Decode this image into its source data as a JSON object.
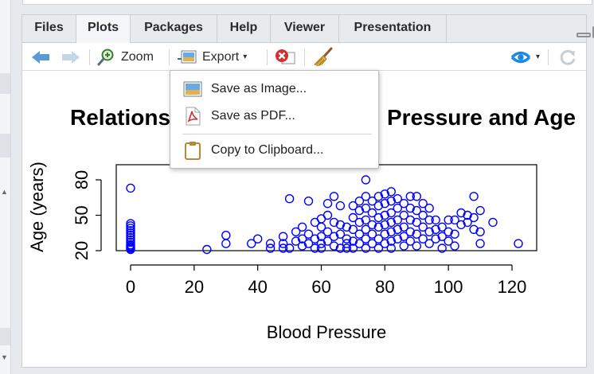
{
  "tabs": [
    {
      "label": "Files"
    },
    {
      "label": "Plots",
      "active": true
    },
    {
      "label": "Packages"
    },
    {
      "label": "Help"
    },
    {
      "label": "Viewer"
    },
    {
      "label": "Presentation"
    }
  ],
  "toolbar": {
    "zoom_label": "Zoom",
    "export_label": "Export",
    "export_caret": "▾",
    "publish_caret": "▾"
  },
  "export_menu": {
    "items": [
      {
        "label": "Save as Image...",
        "icon": "image-icon"
      },
      {
        "label": "Save as PDF...",
        "icon": "pdf-icon"
      },
      {
        "label": "Copy to Clipboard...",
        "icon": "clipboard-icon"
      }
    ]
  },
  "colors": {
    "point_color": "#0000ff",
    "arrow_blue": "#5b9bd5",
    "publish_blue": "#1e88e5"
  },
  "chart_data": {
    "type": "scatter",
    "title_left": "Relations",
    "title_right": "Pressure and Age",
    "xlabel": "Blood Pressure",
    "ylabel": "Age (years)",
    "xlim": [
      0,
      125
    ],
    "ylim": [
      20,
      82
    ],
    "xticks": [
      0,
      20,
      40,
      60,
      80,
      100,
      120
    ],
    "yticks": [
      20,
      50,
      80
    ],
    "grid": false,
    "marker": "open-circle",
    "points": [
      [
        0,
        73
      ],
      [
        0,
        43
      ],
      [
        0,
        41
      ],
      [
        0,
        39
      ],
      [
        0,
        37
      ],
      [
        0,
        35
      ],
      [
        0,
        33
      ],
      [
        0,
        31
      ],
      [
        0,
        29
      ],
      [
        0,
        27
      ],
      [
        0,
        25
      ],
      [
        0,
        24
      ],
      [
        0,
        23
      ],
      [
        0,
        22
      ],
      [
        0,
        21
      ],
      [
        24,
        21
      ],
      [
        30,
        26
      ],
      [
        30,
        33
      ],
      [
        38,
        26
      ],
      [
        40,
        30
      ],
      [
        44,
        26
      ],
      [
        44,
        22
      ],
      [
        48,
        22
      ],
      [
        48,
        26
      ],
      [
        48,
        32
      ],
      [
        50,
        64
      ],
      [
        50,
        22
      ],
      [
        52,
        28
      ],
      [
        52,
        36
      ],
      [
        54,
        40
      ],
      [
        54,
        30
      ],
      [
        54,
        24
      ],
      [
        56,
        62
      ],
      [
        56,
        26
      ],
      [
        56,
        34
      ],
      [
        58,
        44
      ],
      [
        58,
        22
      ],
      [
        58,
        30
      ],
      [
        60,
        40
      ],
      [
        60,
        32
      ],
      [
        60,
        26
      ],
      [
        60,
        22
      ],
      [
        60,
        47
      ],
      [
        62,
        60
      ],
      [
        62,
        50
      ],
      [
        62,
        36
      ],
      [
        62,
        28
      ],
      [
        64,
        66
      ],
      [
        64,
        44
      ],
      [
        64,
        24
      ],
      [
        64,
        32
      ],
      [
        66,
        58
      ],
      [
        66,
        42
      ],
      [
        66,
        34
      ],
      [
        66,
        22
      ],
      [
        68,
        40
      ],
      [
        68,
        30
      ],
      [
        68,
        26
      ],
      [
        68,
        22
      ],
      [
        70,
        58
      ],
      [
        70,
        48
      ],
      [
        70,
        38
      ],
      [
        70,
        28
      ],
      [
        70,
        22
      ],
      [
        72,
        62
      ],
      [
        72,
        54
      ],
      [
        72,
        44
      ],
      [
        72,
        34
      ],
      [
        72,
        26
      ],
      [
        74,
        66
      ],
      [
        74,
        56
      ],
      [
        74,
        46
      ],
      [
        74,
        38
      ],
      [
        74,
        30
      ],
      [
        74,
        22
      ],
      [
        74,
        80
      ],
      [
        76,
        62
      ],
      [
        76,
        52
      ],
      [
        76,
        42
      ],
      [
        76,
        34
      ],
      [
        76,
        26
      ],
      [
        78,
        66
      ],
      [
        78,
        58
      ],
      [
        78,
        48
      ],
      [
        78,
        40
      ],
      [
        78,
        30
      ],
      [
        78,
        22
      ],
      [
        80,
        68
      ],
      [
        80,
        60
      ],
      [
        80,
        50
      ],
      [
        80,
        42
      ],
      [
        80,
        34
      ],
      [
        80,
        26
      ],
      [
        82,
        70
      ],
      [
        82,
        62
      ],
      [
        82,
        52
      ],
      [
        82,
        44
      ],
      [
        82,
        36
      ],
      [
        82,
        28
      ],
      [
        82,
        22
      ],
      [
        84,
        64
      ],
      [
        84,
        56
      ],
      [
        84,
        46
      ],
      [
        84,
        38
      ],
      [
        84,
        30
      ],
      [
        86,
        60
      ],
      [
        86,
        50
      ],
      [
        86,
        40
      ],
      [
        86,
        32
      ],
      [
        86,
        24
      ],
      [
        88,
        66
      ],
      [
        88,
        56
      ],
      [
        88,
        46
      ],
      [
        88,
        36
      ],
      [
        88,
        28
      ],
      [
        90,
        66
      ],
      [
        90,
        54
      ],
      [
        90,
        44
      ],
      [
        90,
        34
      ],
      [
        90,
        24
      ],
      [
        92,
        60
      ],
      [
        92,
        50
      ],
      [
        92,
        40
      ],
      [
        92,
        30
      ],
      [
        94,
        56
      ],
      [
        94,
        46
      ],
      [
        94,
        36
      ],
      [
        94,
        26
      ],
      [
        96,
        46
      ],
      [
        96,
        38
      ],
      [
        96,
        30
      ],
      [
        98,
        40
      ],
      [
        98,
        32
      ],
      [
        98,
        22
      ],
      [
        100,
        46
      ],
      [
        100,
        36
      ],
      [
        100,
        28
      ],
      [
        102,
        46
      ],
      [
        102,
        34
      ],
      [
        102,
        24
      ],
      [
        104,
        52
      ],
      [
        104,
        42
      ],
      [
        106,
        50
      ],
      [
        106,
        44
      ],
      [
        108,
        66
      ],
      [
        108,
        48
      ],
      [
        108,
        38
      ],
      [
        110,
        54
      ],
      [
        110,
        36
      ],
      [
        110,
        26
      ],
      [
        114,
        44
      ],
      [
        122,
        26
      ]
    ]
  }
}
